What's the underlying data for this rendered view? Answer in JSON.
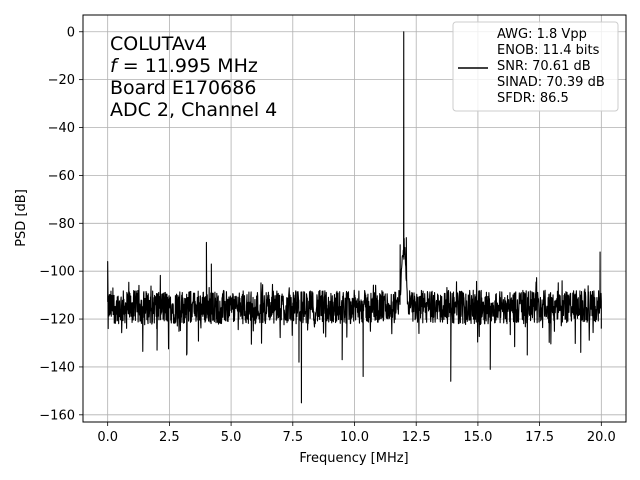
{
  "chart_data": {
    "type": "line",
    "xlabel": "Frequency [MHz]",
    "ylabel": "PSD [dB]",
    "xlim": [
      -1.0,
      21.0
    ],
    "ylim": [
      -163,
      7
    ],
    "xticks": [
      0.0,
      2.5,
      5.0,
      7.5,
      10.0,
      12.5,
      15.0,
      17.5,
      20.0
    ],
    "xtick_labels": [
      "0.0",
      "2.5",
      "5.0",
      "7.5",
      "10.0",
      "12.5",
      "15.0",
      "17.5",
      "20.0"
    ],
    "yticks": [
      0,
      -20,
      -40,
      -60,
      -80,
      -100,
      -120,
      -140,
      -160
    ],
    "ytick_labels": [
      "0",
      "−20",
      "−40",
      "−60",
      "−80",
      "−100",
      "−120",
      "−140",
      "−160"
    ],
    "grid": true,
    "annotation": {
      "line1": "COLUTAv4",
      "line2_var": "f",
      "line2_rest": " = 11.995 MHz",
      "line3": "Board E170686",
      "line4": "ADC 2, Channel 4"
    },
    "legend": {
      "position": "top-right",
      "lines": [
        "AWG: 1.8 Vpp",
        "ENOB: 11.4 bits",
        "SNR: 70.61 dB",
        "SINAD: 70.39 dB",
        "SFDR: 86.5"
      ]
    },
    "series": [
      {
        "color": "#000000",
        "noise_floor_db": -115,
        "x_range": [
          0.0,
          20.0
        ],
        "peak": {
          "x": 11.995,
          "y": 0
        },
        "features": [
          {
            "x": 0.0,
            "y": -96
          },
          {
            "x": 0.02,
            "y": -124
          },
          {
            "x": 2.0,
            "y": -133
          },
          {
            "x": 3.2,
            "y": -135
          },
          {
            "x": 4.0,
            "y": -88
          },
          {
            "x": 4.2,
            "y": -97
          },
          {
            "x": 7.75,
            "y": -138
          },
          {
            "x": 7.85,
            "y": -155
          },
          {
            "x": 9.5,
            "y": -137
          },
          {
            "x": 10.35,
            "y": -144
          },
          {
            "x": 11.85,
            "y": -89
          },
          {
            "x": 12.1,
            "y": -86
          },
          {
            "x": 13.9,
            "y": -146
          },
          {
            "x": 15.5,
            "y": -141
          },
          {
            "x": 17.0,
            "y": -135
          },
          {
            "x": 19.95,
            "y": -92
          },
          {
            "x": 20.0,
            "y": -124
          }
        ]
      }
    ]
  }
}
